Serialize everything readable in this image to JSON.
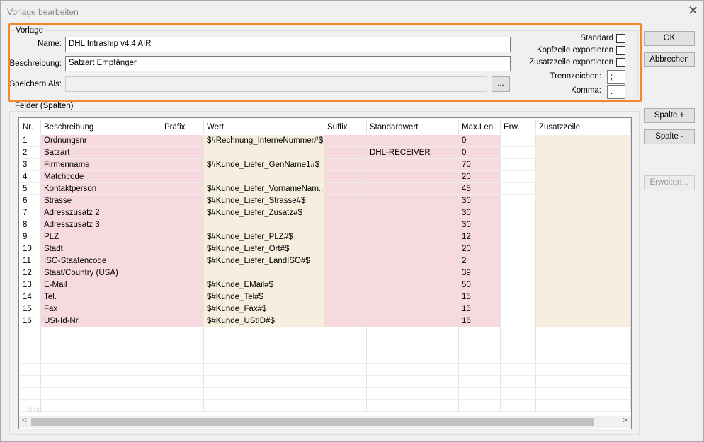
{
  "window": {
    "title": "Vorlage bearbeiten"
  },
  "vorlage": {
    "legend": "Vorlage",
    "name_label": "Name:",
    "name_value": "DHL Intraship v4.4 AIR",
    "beschreibung_label": "Beschreibung:",
    "beschreibung_value": "Satzart Empfänger",
    "speichern_label": "Speichern Als:",
    "browse": "...",
    "standard": "Standard",
    "kopfzeile": "Kopfzeile exportieren",
    "zusatzzeile": "Zusatzzeile exportieren",
    "trenn_label": "Trennzeichen:",
    "trenn_value": ";",
    "komma_label": "Komma:",
    "komma_value": "."
  },
  "buttons": {
    "ok": "OK",
    "abbrechen": "Abbrechen",
    "spalte_plus": "Spalte +",
    "spalte_minus": "Spalte -",
    "erweitert": "Erweitert..."
  },
  "felder": {
    "legend": "Felder (Spalten)",
    "columns": [
      "Nr.",
      "Beschreibung",
      "Präfix",
      "Wert",
      "Suffix",
      "Standardwert",
      "Max.Len.",
      "Erw.",
      "Zusatzzeile"
    ],
    "rows": [
      {
        "nr": 1,
        "beschreibung": "Ordnungsnr",
        "wert": "$#Rechnung_InterneNummer#$",
        "maxlen": 0
      },
      {
        "nr": 2,
        "beschreibung": "Satzart",
        "standardwert": "DHL-RECEIVER",
        "maxlen": 0
      },
      {
        "nr": 3,
        "beschreibung": "Firmenname",
        "wert": "$#Kunde_Liefer_GenName1#$",
        "maxlen": 70
      },
      {
        "nr": 4,
        "beschreibung": "Matchcode",
        "maxlen": 20
      },
      {
        "nr": 5,
        "beschreibung": "Kontaktperson",
        "wert": "$#Kunde_Liefer_VornameNam...",
        "maxlen": 45
      },
      {
        "nr": 6,
        "beschreibung": "Strasse",
        "wert": "$#Kunde_Liefer_Strasse#$",
        "maxlen": 30
      },
      {
        "nr": 7,
        "beschreibung": "Adresszusatz 2",
        "wert": "$#Kunde_Liefer_Zusatz#$",
        "maxlen": 30
      },
      {
        "nr": 8,
        "beschreibung": "Adresszusatz 3",
        "maxlen": 30
      },
      {
        "nr": 9,
        "beschreibung": "PLZ",
        "wert": "$#Kunde_Liefer_PLZ#$",
        "maxlen": 12
      },
      {
        "nr": 10,
        "beschreibung": "Stadt",
        "wert": "$#Kunde_Liefer_Ort#$",
        "maxlen": 20
      },
      {
        "nr": 11,
        "beschreibung": "ISO-Staatencode",
        "wert": "$#Kunde_Liefer_LandISO#$",
        "maxlen": 2
      },
      {
        "nr": 12,
        "beschreibung": "Staat/Country (USA)",
        "maxlen": 39
      },
      {
        "nr": 13,
        "beschreibung": "E-Mail",
        "wert": "$#Kunde_EMail#$",
        "maxlen": 50
      },
      {
        "nr": 14,
        "beschreibung": "Tel.",
        "wert": "$#Kunde_Tel#$",
        "maxlen": 15
      },
      {
        "nr": 15,
        "beschreibung": "Fax",
        "wert": "$#Kunde_Fax#$",
        "maxlen": 15
      },
      {
        "nr": 16,
        "beschreibung": "USt-Id-Nr.",
        "wert": "$#Kunde_UStID#$",
        "maxlen": 16
      }
    ]
  },
  "watermark": "blog"
}
